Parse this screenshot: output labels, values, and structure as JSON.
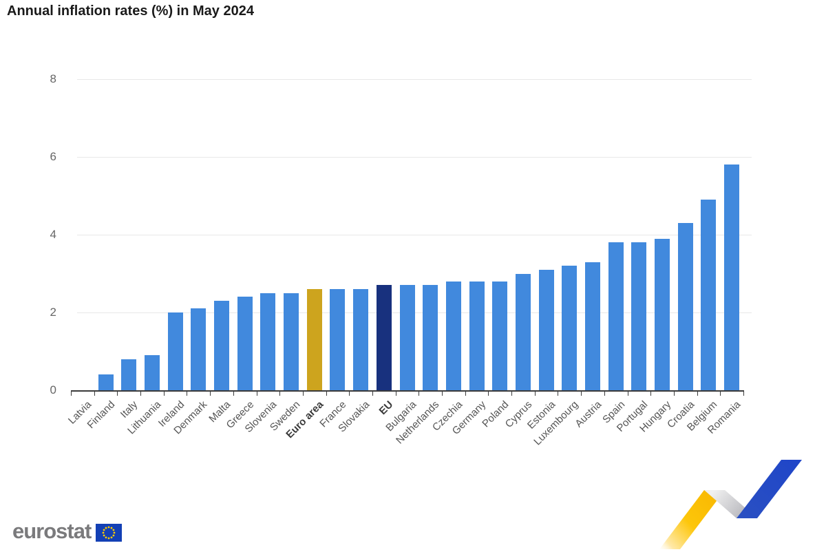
{
  "title": "Annual inflation rates (%) in May 2024",
  "chart_data": {
    "type": "bar",
    "categories": [
      "Latvia",
      "Finland",
      "Italy",
      "Lithuania",
      "Ireland",
      "Denmark",
      "Malta",
      "Greece",
      "Slovenia",
      "Sweden",
      "Euro area",
      "France",
      "Slovakia",
      "EU",
      "Bulgaria",
      "Netherlands",
      "Czechia",
      "Germany",
      "Poland",
      "Cyprus",
      "Estonia",
      "Luxembourg",
      "Austria",
      "Spain",
      "Portugal",
      "Hungary",
      "Croatia",
      "Belgium",
      "Romania"
    ],
    "values": [
      0.0,
      0.4,
      0.8,
      0.9,
      2.0,
      2.1,
      2.3,
      2.4,
      2.5,
      2.5,
      2.6,
      2.6,
      2.6,
      2.7,
      2.7,
      2.7,
      2.8,
      2.8,
      2.8,
      3.0,
      3.1,
      3.2,
      3.3,
      3.8,
      3.8,
      3.9,
      4.3,
      4.9,
      5.8
    ],
    "title": "Annual inflation rates (%) in May 2024",
    "xlabel": "",
    "ylabel": "",
    "ylim": [
      0,
      8
    ],
    "yticks": [
      0,
      2,
      4,
      6,
      8
    ],
    "grid": true,
    "legend_position": "none",
    "bar_default_color": "#4189dd",
    "highlighted_bars": [
      {
        "category": "Euro area",
        "color": "#cda41e",
        "bold_label": true
      },
      {
        "category": "EU",
        "color": "#18317e",
        "bold_label": true
      }
    ]
  },
  "colors": {
    "grid": "#e8e8e8",
    "axis": "#3a3a3a",
    "y_tick_text": "#666666",
    "x_tick_text": "#555555",
    "title_text": "#1a1a1a"
  },
  "branding": {
    "logo_text": "eurostat",
    "logo_text_color": "#7a7a7c",
    "flag_blue": "#1340b5",
    "star_yellow": "#ffcc00",
    "ribbon_yellow": "#fdc60a",
    "ribbon_gray": "#bdbdc2",
    "ribbon_blue": "#2449c4"
  }
}
